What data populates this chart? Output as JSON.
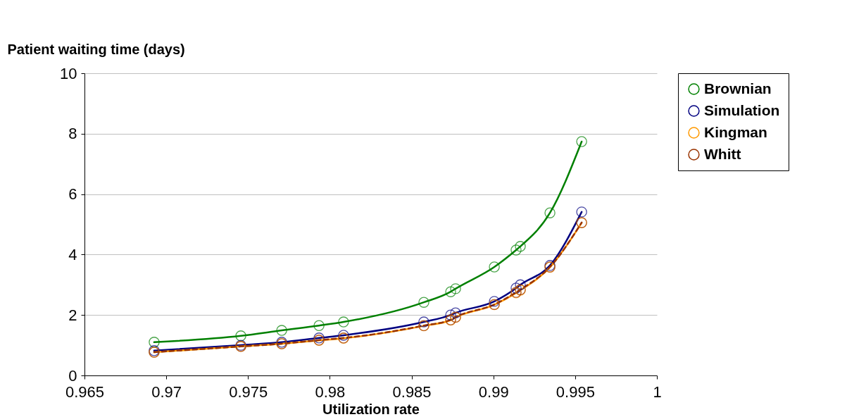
{
  "chart_data": {
    "type": "line",
    "xlabel": "Utilization rate",
    "ylabel": "Patient waiting time (days)",
    "x": [
      0.96926,
      0.97456,
      0.97706,
      0.97934,
      0.98084,
      0.98575,
      0.98739,
      0.98769,
      0.99006,
      0.99139,
      0.99165,
      0.99346,
      0.9954
    ],
    "series": [
      {
        "name": "Brownian",
        "color": "#008000",
        "line_style": "solid",
        "values": [
          1.1,
          1.31,
          1.49,
          1.65,
          1.77,
          2.42,
          2.77,
          2.87,
          3.59,
          4.15,
          4.27,
          5.38,
          7.74
        ]
      },
      {
        "name": "Simulation",
        "color": "#000080",
        "line_style": "solid",
        "values": [
          0.82,
          1.0,
          1.1,
          1.24,
          1.33,
          1.77,
          2.0,
          2.07,
          2.45,
          2.89,
          3.0,
          3.64,
          5.41
        ]
      },
      {
        "name": "Kingman",
        "color": "#ff9900",
        "line_style": "solid",
        "values": [
          0.77,
          0.96,
          1.05,
          1.16,
          1.23,
          1.64,
          1.83,
          1.92,
          2.34,
          2.73,
          2.82,
          3.58,
          5.05
        ]
      },
      {
        "name": "Whitt",
        "color": "#993300",
        "line_style": "dashed",
        "values": [
          0.77,
          0.96,
          1.05,
          1.17,
          1.24,
          1.65,
          1.84,
          1.93,
          2.35,
          2.75,
          2.84,
          3.59,
          5.06
        ]
      }
    ],
    "xlim": [
      0.965,
      1
    ],
    "xticks": [
      0.965,
      0.97,
      0.975,
      0.98,
      0.985,
      0.99,
      0.995,
      1
    ],
    "ylim": [
      0,
      10
    ],
    "yticks": [
      0,
      2,
      4,
      6,
      8,
      10
    ],
    "grid": "y",
    "legend": "right",
    "marker": "circle"
  }
}
